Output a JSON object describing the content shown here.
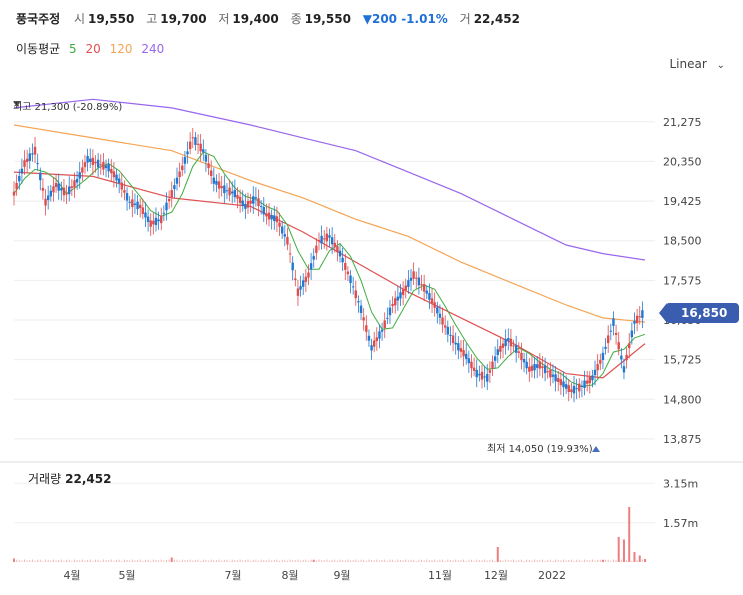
{
  "header": {
    "stock_name": "풍국주정",
    "open_label": "시",
    "open": "19,550",
    "high_label": "고",
    "high": "19,700",
    "low_label": "저",
    "low": "19,400",
    "close_label": "종",
    "close": "19,550",
    "change": "▼200 -1.01%",
    "volume_label": "거",
    "volume": "22,452",
    "change_color": "#1e6fd6"
  },
  "moving_average": {
    "label": "이동평균",
    "periods": [
      {
        "value": "5",
        "color": "#3fae3f"
      },
      {
        "value": "20",
        "color": "#e05050"
      },
      {
        "value": "120",
        "color": "#f5a455"
      },
      {
        "value": "240",
        "color": "#9966ee"
      }
    ]
  },
  "scale_selector": {
    "label": "Linear",
    "icon": "chevron-down-icon"
  },
  "chart_data": {
    "type": "candlestick",
    "y_ticks": [
      "21,275",
      "20,350",
      "19,425",
      "18,500",
      "17,575",
      "16,650",
      "15,725",
      "14,800",
      "13,875"
    ],
    "ylim": [
      13500,
      21900
    ],
    "x_ticks": [
      "4월",
      "5월",
      "7월",
      "8월",
      "9월",
      "11월",
      "12월",
      "2022"
    ],
    "current_price": "16,850",
    "high_annotation": "최고 21,300 (-20.89%)",
    "low_annotation": "최저 14,050 (19.93%)",
    "price_points": [
      [
        0,
        19600
      ],
      [
        2,
        20300
      ],
      [
        4,
        20600
      ],
      [
        6,
        19400
      ],
      [
        8,
        19800
      ],
      [
        10,
        19600
      ],
      [
        12,
        19900
      ],
      [
        14,
        20400
      ],
      [
        16,
        20300
      ],
      [
        18,
        20200
      ],
      [
        20,
        19900
      ],
      [
        22,
        19400
      ],
      [
        24,
        19300
      ],
      [
        26,
        18900
      ],
      [
        28,
        19000
      ],
      [
        30,
        19600
      ],
      [
        32,
        20200
      ],
      [
        34,
        20900
      ],
      [
        36,
        20600
      ],
      [
        38,
        19900
      ],
      [
        40,
        19700
      ],
      [
        42,
        19600
      ],
      [
        44,
        19300
      ],
      [
        46,
        19500
      ],
      [
        48,
        19100
      ],
      [
        50,
        19000
      ],
      [
        52,
        18500
      ],
      [
        54,
        17300
      ],
      [
        56,
        17700
      ],
      [
        58,
        18500
      ],
      [
        60,
        18600
      ],
      [
        62,
        18200
      ],
      [
        64,
        17600
      ],
      [
        66,
        16900
      ],
      [
        68,
        16000
      ],
      [
        70,
        16400
      ],
      [
        72,
        17000
      ],
      [
        74,
        17300
      ],
      [
        76,
        17700
      ],
      [
        78,
        17400
      ],
      [
        80,
        17000
      ],
      [
        82,
        16500
      ],
      [
        84,
        16100
      ],
      [
        86,
        15800
      ],
      [
        88,
        15400
      ],
      [
        90,
        15300
      ],
      [
        92,
        15900
      ],
      [
        94,
        16200
      ],
      [
        96,
        15900
      ],
      [
        98,
        15500
      ],
      [
        100,
        15600
      ],
      [
        102,
        15400
      ],
      [
        104,
        15200
      ],
      [
        106,
        15000
      ],
      [
        108,
        15100
      ],
      [
        110,
        15300
      ],
      [
        112,
        15800
      ],
      [
        114,
        16600
      ],
      [
        116,
        15500
      ],
      [
        118,
        16600
      ],
      [
        120,
        16850
      ]
    ],
    "ma_series": [
      {
        "period": "20",
        "points": [
          [
            0,
            20100
          ],
          [
            15,
            20000
          ],
          [
            30,
            19500
          ],
          [
            45,
            19300
          ],
          [
            55,
            18700
          ],
          [
            65,
            18000
          ],
          [
            75,
            17300
          ],
          [
            85,
            16700
          ],
          [
            95,
            16100
          ],
          [
            105,
            15400
          ],
          [
            112,
            15300
          ],
          [
            120,
            16100
          ]
        ]
      },
      {
        "period": "120",
        "points": [
          [
            0,
            21200
          ],
          [
            15,
            20900
          ],
          [
            30,
            20600
          ],
          [
            45,
            19900
          ],
          [
            55,
            19500
          ],
          [
            65,
            19000
          ],
          [
            75,
            18600
          ],
          [
            85,
            18000
          ],
          [
            95,
            17500
          ],
          [
            105,
            17000
          ],
          [
            112,
            16700
          ],
          [
            120,
            16600
          ]
        ]
      },
      {
        "period": "240",
        "points": [
          [
            0,
            21600
          ],
          [
            15,
            21800
          ],
          [
            30,
            21600
          ],
          [
            45,
            21200
          ],
          [
            55,
            20900
          ],
          [
            65,
            20600
          ],
          [
            75,
            20100
          ],
          [
            85,
            19600
          ],
          [
            95,
            19000
          ],
          [
            105,
            18400
          ],
          [
            112,
            18200
          ],
          [
            120,
            18050
          ]
        ]
      }
    ],
    "volume_title": "거래량",
    "volume_value": "22,452",
    "volume_ticks": [
      "3.15m",
      "1.57m"
    ],
    "volume_ylim": [
      0,
      4000000
    ],
    "volume_spikes": [
      [
        0,
        140000
      ],
      [
        30,
        180000
      ],
      [
        57,
        90000
      ],
      [
        92,
        600000
      ],
      [
        112,
        90000
      ],
      [
        115,
        1000000
      ],
      [
        116,
        900000
      ],
      [
        117,
        2200000
      ],
      [
        118,
        400000
      ],
      [
        119,
        260000
      ],
      [
        120,
        120000
      ]
    ]
  }
}
